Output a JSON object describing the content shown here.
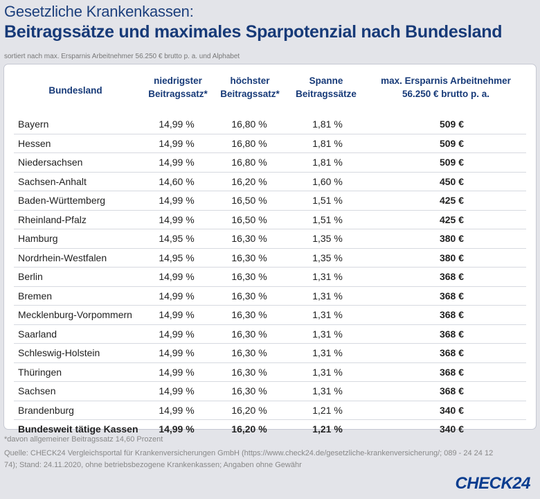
{
  "header": {
    "subtitle": "Gesetzliche Krankenkassen:",
    "title": "Beitragssätze und maximales Sparpotenzial nach Bundesland",
    "sort_note": "sortiert nach max. Ersparnis Arbeitnehmer 56.250 € brutto p. a. und Alphabet"
  },
  "chart_data": {
    "type": "table",
    "columns": {
      "bundesland": "Bundesland",
      "min_line1": "niedrigster",
      "min_line2": "Beitragssatz*",
      "max_line1": "höchster",
      "max_line2": "Beitragssatz*",
      "span_line1": "Spanne",
      "span_line2": "Beitragssätze",
      "save_line1": "max. Ersparnis Arbeitnehmer",
      "save_line2": "56.250 € brutto p. a."
    },
    "rows": [
      {
        "land": "Bayern",
        "min": "14,99 %",
        "max": "16,80 %",
        "span": "1,81 %",
        "save": "509 €"
      },
      {
        "land": "Hessen",
        "min": "14,99 %",
        "max": "16,80 %",
        "span": "1,81 %",
        "save": "509 €"
      },
      {
        "land": "Niedersachsen",
        "min": "14,99 %",
        "max": "16,80 %",
        "span": "1,81 %",
        "save": "509 €"
      },
      {
        "land": "Sachsen-Anhalt",
        "min": "14,60 %",
        "max": "16,20 %",
        "span": "1,60 %",
        "save": "450 €"
      },
      {
        "land": "Baden-Württemberg",
        "min": "14,99 %",
        "max": "16,50 %",
        "span": "1,51 %",
        "save": "425 €"
      },
      {
        "land": "Rheinland-Pfalz",
        "min": "14,99 %",
        "max": "16,50 %",
        "span": "1,51 %",
        "save": "425 €"
      },
      {
        "land": "Hamburg",
        "min": "14,95 %",
        "max": "16,30 %",
        "span": "1,35 %",
        "save": "380 €"
      },
      {
        "land": "Nordrhein-Westfalen",
        "min": "14,95 %",
        "max": "16,30 %",
        "span": "1,35 %",
        "save": "380 €"
      },
      {
        "land": "Berlin",
        "min": "14,99 %",
        "max": "16,30 %",
        "span": "1,31 %",
        "save": "368 €"
      },
      {
        "land": "Bremen",
        "min": "14,99 %",
        "max": "16,30 %",
        "span": "1,31 %",
        "save": "368 €"
      },
      {
        "land": "Mecklenburg-Vorpommern",
        "min": "14,99 %",
        "max": "16,30 %",
        "span": "1,31 %",
        "save": "368 €"
      },
      {
        "land": "Saarland",
        "min": "14,99 %",
        "max": "16,30 %",
        "span": "1,31 %",
        "save": "368 €"
      },
      {
        "land": "Schleswig-Holstein",
        "min": "14,99 %",
        "max": "16,30 %",
        "span": "1,31 %",
        "save": "368 €"
      },
      {
        "land": "Thüringen",
        "min": "14,99 %",
        "max": "16,30 %",
        "span": "1,31 %",
        "save": "368 €"
      },
      {
        "land": "Sachsen",
        "min": "14,99 %",
        "max": "16,30 %",
        "span": "1,31 %",
        "save": "368 €"
      },
      {
        "land": "Brandenburg",
        "min": "14,99 %",
        "max": "16,20 %",
        "span": "1,21 %",
        "save": "340 €"
      }
    ],
    "total_row": {
      "land": "Bundesweit tätige Kassen",
      "min": "14,99 %",
      "max": "16,20 %",
      "span": "1,21 %",
      "save": "340 €"
    }
  },
  "footer": {
    "footnote": "*davon allgemeiner Beitragssatz 14,60 Prozent",
    "source": "Quelle: CHECK24 Vergleichsportal für Krankenversicherungen GmbH (https://www.check24.de/gesetzliche-krankenversicherung/; 089 - 24 24 12 74); Stand: 24.11.2020, ohne betriebsbezogene Krankenkassen; Angaben ohne Gewähr",
    "logo": "CHECK24"
  }
}
